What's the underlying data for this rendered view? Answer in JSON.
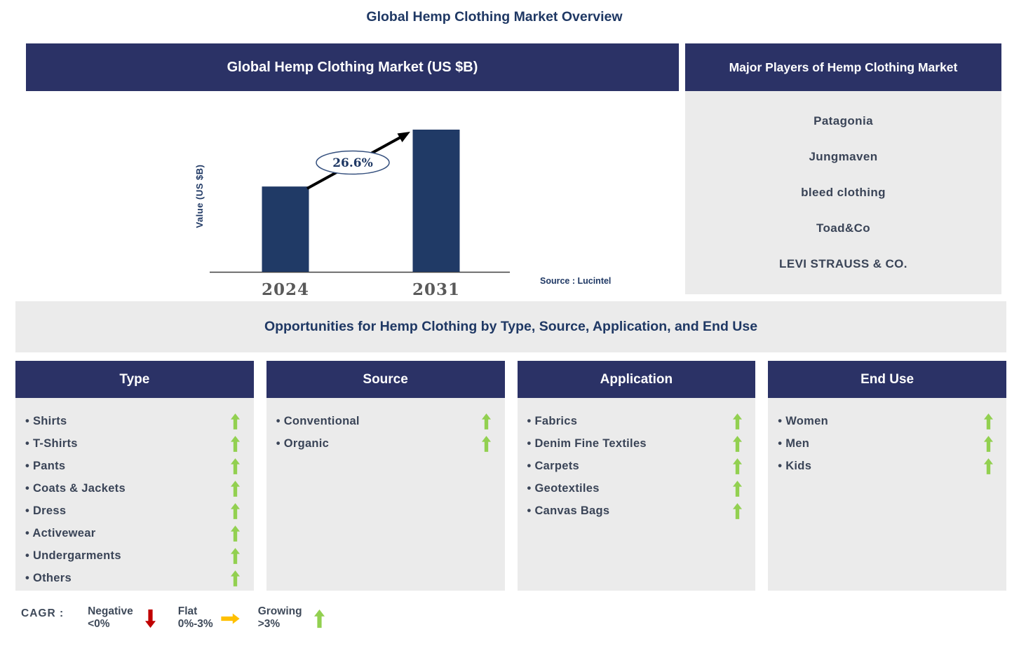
{
  "page": {
    "title": "Global Hemp Clothing Market Overview",
    "bullet": "•"
  },
  "chart_panel": {
    "header": "Global Hemp Clothing Market (US $B)",
    "source": "Source : Lucintel"
  },
  "chart_data": {
    "type": "bar",
    "title": "Global Hemp Clothing Market (US $B)",
    "categories": [
      "2024",
      "2031"
    ],
    "relative_values": [
      0.6,
      1.0
    ],
    "values_note": "y-axis has no numeric ticks; bars depict relative market size with growth arrow between them",
    "xlabel": "",
    "ylabel": "Value (US $B)",
    "cagr_label": "26.6%",
    "bar_color": "#203A66",
    "legend_position": "none",
    "grid": false
  },
  "players": {
    "header": "Major Players of Hemp Clothing Market",
    "items": [
      "Patagonia",
      "Jungmaven",
      "bleed clothing",
      "Toad&Co",
      "LEVI STRAUSS & CO."
    ]
  },
  "opportunities": {
    "title": "Opportunities for Hemp Clothing by Type, Source, Application, and End Use",
    "columns": [
      {
        "title": "Type",
        "items": [
          {
            "label": "Shirts",
            "trend": "growing"
          },
          {
            "label": "T-Shirts",
            "trend": "growing"
          },
          {
            "label": "Pants",
            "trend": "growing"
          },
          {
            "label": "Coats & Jackets",
            "trend": "growing"
          },
          {
            "label": "Dress",
            "trend": "growing"
          },
          {
            "label": "Activewear",
            "trend": "growing"
          },
          {
            "label": "Undergarments",
            "trend": "growing"
          },
          {
            "label": "Others",
            "trend": "growing"
          }
        ]
      },
      {
        "title": "Source",
        "items": [
          {
            "label": "Conventional",
            "trend": "growing"
          },
          {
            "label": "Organic",
            "trend": "growing"
          }
        ]
      },
      {
        "title": "Application",
        "items": [
          {
            "label": "Fabrics",
            "trend": "growing"
          },
          {
            "label": "Denim Fine Textiles",
            "trend": "growing"
          },
          {
            "label": "Carpets",
            "trend": "growing"
          },
          {
            "label": "Geotextiles",
            "trend": "growing"
          },
          {
            "label": "Canvas Bags",
            "trend": "growing"
          }
        ]
      },
      {
        "title": "End Use",
        "items": [
          {
            "label": "Women",
            "trend": "growing"
          },
          {
            "label": "Men",
            "trend": "growing"
          },
          {
            "label": "Kids",
            "trend": "growing"
          }
        ]
      }
    ]
  },
  "legend": {
    "prefix": "CAGR :",
    "entries": [
      {
        "label": "Negative",
        "range": "<0%",
        "direction": "down",
        "color": "#C00000"
      },
      {
        "label": "Flat",
        "range": "0%-3%",
        "direction": "right",
        "color": "#FFC000"
      },
      {
        "label": "Growing",
        "range": ">3%",
        "direction": "up",
        "color": "#92D050"
      }
    ]
  },
  "colors": {
    "navy_header": "#2B3266",
    "bar": "#203A66",
    "panel_gray": "#EBEBEB",
    "text_navy": "#1F3864",
    "list_text": "#3A4457",
    "axis_year_gray": "#595959",
    "growing_green": "#92D050",
    "flat_yellow": "#FFC000",
    "negative_red": "#C00000"
  }
}
